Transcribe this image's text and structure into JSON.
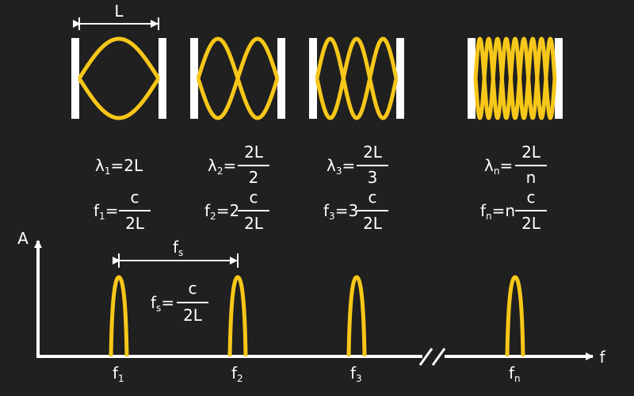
{
  "colors": {
    "background": "#202020",
    "wave": "#f7c719",
    "ink": "#ffffff"
  },
  "cavity_length_label": "L",
  "modes": [
    {
      "wavelength": {
        "symbol": "λ",
        "sub": "1",
        "eq": "=",
        "rhs": "2L",
        "num": "",
        "den": ""
      },
      "frequency": {
        "symbol": "f",
        "sub": "1",
        "eq": "=",
        "coef": "",
        "num": "c",
        "den": "2L"
      }
    },
    {
      "wavelength": {
        "symbol": "λ",
        "sub": "2",
        "eq": "=",
        "rhs": "",
        "num": "2L",
        "den": "2"
      },
      "frequency": {
        "symbol": "f",
        "sub": "2",
        "eq": "=",
        "coef": "2",
        "num": "c",
        "den": "2L"
      }
    },
    {
      "wavelength": {
        "symbol": "λ",
        "sub": "3",
        "eq": "=",
        "rhs": "",
        "num": "2L",
        "den": "3"
      },
      "frequency": {
        "symbol": "f",
        "sub": "3",
        "eq": "=",
        "coef": "3",
        "num": "c",
        "den": "2L"
      }
    },
    {
      "wavelength": {
        "symbol": "λ",
        "sub": "n",
        "eq": "=",
        "rhs": "",
        "num": "2L",
        "den": "n"
      },
      "frequency": {
        "symbol": "f",
        "sub": "n",
        "eq": "=",
        "coef": "n",
        "num": "c",
        "den": "2L"
      }
    }
  ],
  "spectrum": {
    "y_axis_label": "A",
    "x_axis_label": "f",
    "peaks": [
      {
        "symbol": "f",
        "sub": "1"
      },
      {
        "symbol": "f",
        "sub": "2"
      },
      {
        "symbol": "f",
        "sub": "3"
      },
      {
        "symbol": "f",
        "sub": "n"
      }
    ],
    "spacing_label": {
      "symbol": "f",
      "sub": "s"
    },
    "spacing_formula": {
      "symbol": "f",
      "sub": "s",
      "eq": "=",
      "num": "c",
      "den": "2L"
    }
  }
}
